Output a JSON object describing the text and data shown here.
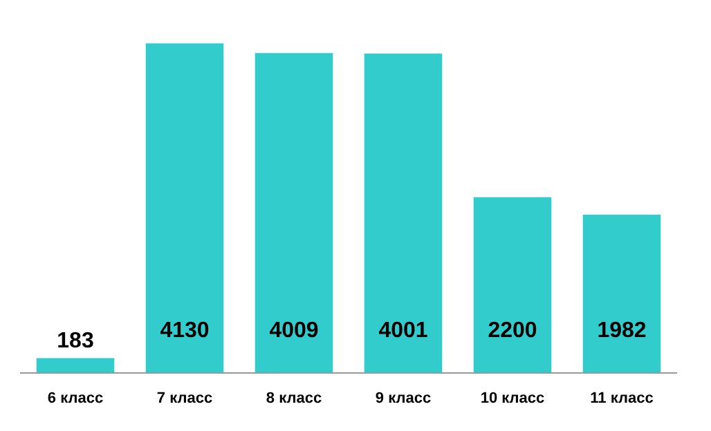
{
  "chart_data": {
    "type": "bar",
    "categories": [
      "6 класс",
      "7 класс",
      "8 класс",
      "9 класс",
      "10 класс",
      "11 класс"
    ],
    "values": [
      183,
      4130,
      4009,
      4001,
      2200,
      1982
    ],
    "color": "#33cccc",
    "data_labels": true,
    "tick_labels": "x",
    "grid": false,
    "legend": false
  }
}
